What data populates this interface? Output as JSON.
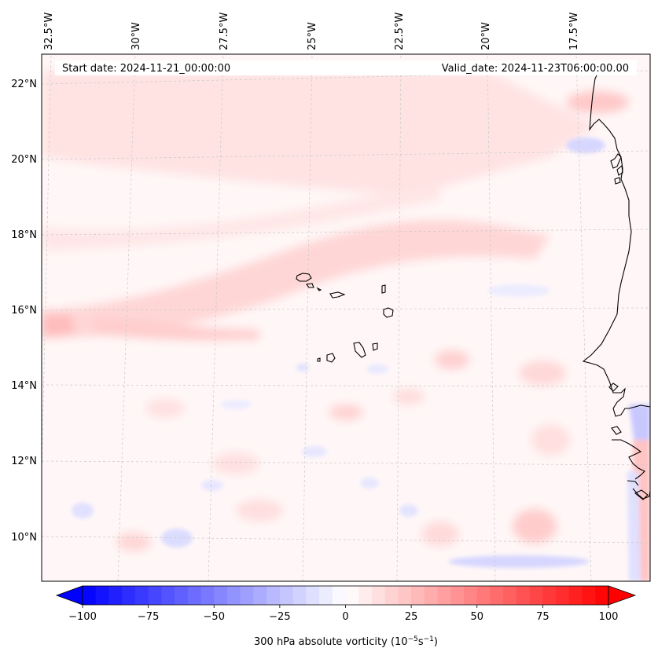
{
  "map": {
    "header": {
      "start_date": "Start date: 2024-11-21_00:00:00",
      "valid_date": "Valid_date: 2024-11-23T06:00:00.00"
    },
    "lon_labels": [
      "32.5°W",
      "30°W",
      "27.5°W",
      "25°W",
      "22.5°W",
      "20°W",
      "17.5°W"
    ],
    "lat_labels": [
      "22°N",
      "20°N",
      "18°N",
      "16°N",
      "14°N",
      "12°N",
      "10°N"
    ],
    "colors": {
      "land_outline": "#000000",
      "gridline": "#c8c8c8",
      "positive_max": "#ff0000",
      "negative_max": "#0000ff",
      "neutral": "#ffffff"
    }
  },
  "colorbar": {
    "ticks": [
      "−100",
      "−75",
      "−50",
      "−25",
      "0",
      "25",
      "50",
      "75",
      "100"
    ],
    "min": -100,
    "max": 100,
    "label": "300 hPa absolute vorticity (10",
    "label_exp1": "−5",
    "label_mid": "s",
    "label_exp2": "−1",
    "label_end": ")"
  }
}
